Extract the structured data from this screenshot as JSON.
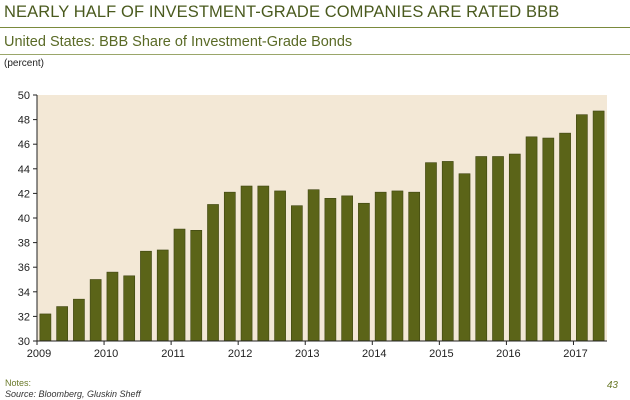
{
  "header": {
    "title": "NEARLY HALF OF INVESTMENT-GRADE COMPANIES ARE RATED BBB",
    "subtitle": "United States: BBB Share of Investment-Grade Bonds",
    "unit": "(percent)"
  },
  "footer": {
    "notes_label": "Notes:",
    "source": "Source: Bloomberg, Gluskin Sheff",
    "page_number": "43"
  },
  "colors": {
    "plot_background": "#f3e8d6",
    "bar": "#5b6418",
    "bar_edge": "#3d4410",
    "axis": "#222222",
    "title": "#4a5a1e"
  },
  "chart_data": {
    "type": "bar",
    "title": "United States: BBB Share of Investment-Grade Bonds",
    "xlabel": "",
    "ylabel": "(percent)",
    "ylim": [
      30,
      50
    ],
    "yticks": [
      30,
      32,
      34,
      36,
      38,
      40,
      42,
      44,
      46,
      48,
      50
    ],
    "xtick_labels": [
      "2009",
      "2010",
      "2011",
      "2012",
      "2013",
      "2014",
      "2015",
      "2016",
      "2017"
    ],
    "grid": false,
    "legend": "none",
    "categories": [
      "2009 Q1",
      "2009 Q2",
      "2009 Q3",
      "2009 Q4",
      "2010 Q1",
      "2010 Q2",
      "2010 Q3",
      "2010 Q4",
      "2011 Q1",
      "2011 Q2",
      "2011 Q3",
      "2011 Q4",
      "2012 Q1",
      "2012 Q2",
      "2012 Q3",
      "2012 Q4",
      "2013 Q1",
      "2013 Q2",
      "2013 Q3",
      "2013 Q4",
      "2014 Q1",
      "2014 Q2",
      "2014 Q3",
      "2014 Q4",
      "2015 Q1",
      "2015 Q2",
      "2015 Q3",
      "2015 Q4",
      "2016 Q1",
      "2016 Q2",
      "2016 Q3",
      "2016 Q4",
      "2017 Q1",
      "2017 Q2"
    ],
    "values": [
      32.2,
      32.8,
      33.4,
      35.0,
      35.6,
      35.3,
      37.3,
      37.4,
      39.1,
      39.0,
      41.1,
      42.1,
      42.6,
      42.6,
      42.2,
      41.0,
      42.3,
      41.6,
      41.8,
      41.2,
      42.1,
      42.2,
      42.1,
      44.5,
      44.6,
      43.6,
      45.0,
      45.0,
      45.2,
      46.6,
      46.5,
      46.9,
      48.4,
      48.7
    ]
  }
}
